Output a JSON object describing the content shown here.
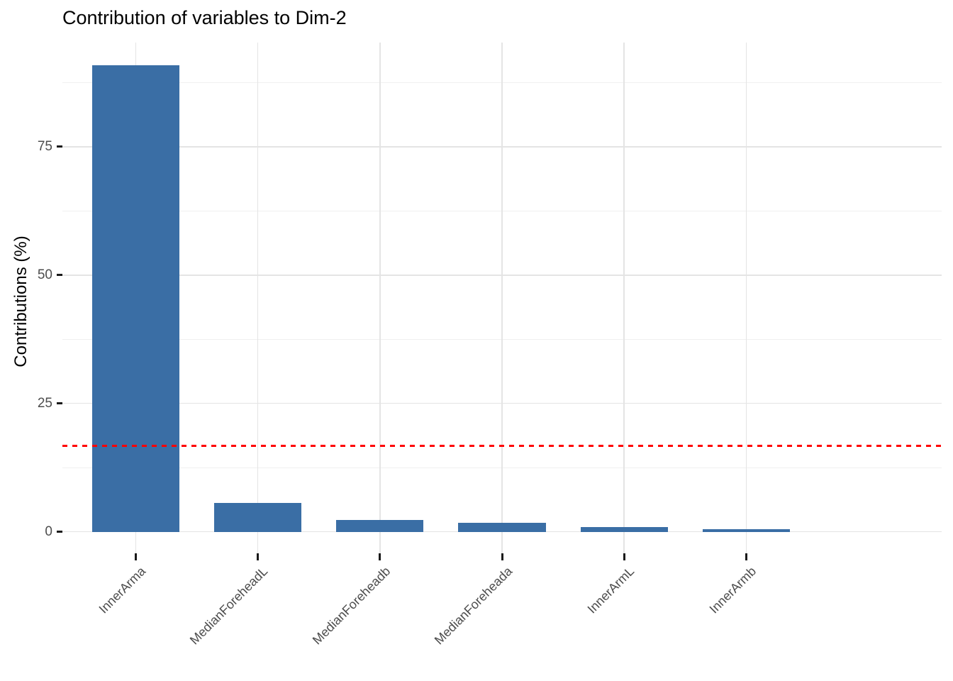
{
  "chart_data": {
    "type": "bar",
    "title": "Contribution of variables to Dim-2",
    "ylabel": "Contributions (%)",
    "xlabel": "",
    "categories": [
      "InnerArma",
      "MedianForeheadL",
      "MedianForeheadb",
      "MedianForeheada",
      "InnerArmL",
      "InnerArmb"
    ],
    "values": [
      90.9,
      5.6,
      2.3,
      1.8,
      0.95,
      0.45
    ],
    "y_ticks": [
      0,
      25,
      50,
      75
    ],
    "y_minor_ticks": [
      12.5,
      37.5,
      62.5,
      87.5
    ],
    "ylim": [
      -4.2,
      95.3
    ],
    "grid": true,
    "legend": "none",
    "bar_orientation": "vertical",
    "x_label_rotation_deg": 45,
    "reference_line": {
      "value": 16.67,
      "style": "dashed"
    }
  },
  "colors": {
    "bar": "#3A6EA5",
    "reference_line": "#FF0000",
    "grid_major": "#E4E4E4",
    "grid_minor": "#F0F0F0",
    "axis_text": "#4D4D4D",
    "tick": "#1A1A1A",
    "title": "#000000",
    "background": "#FFFFFF"
  }
}
